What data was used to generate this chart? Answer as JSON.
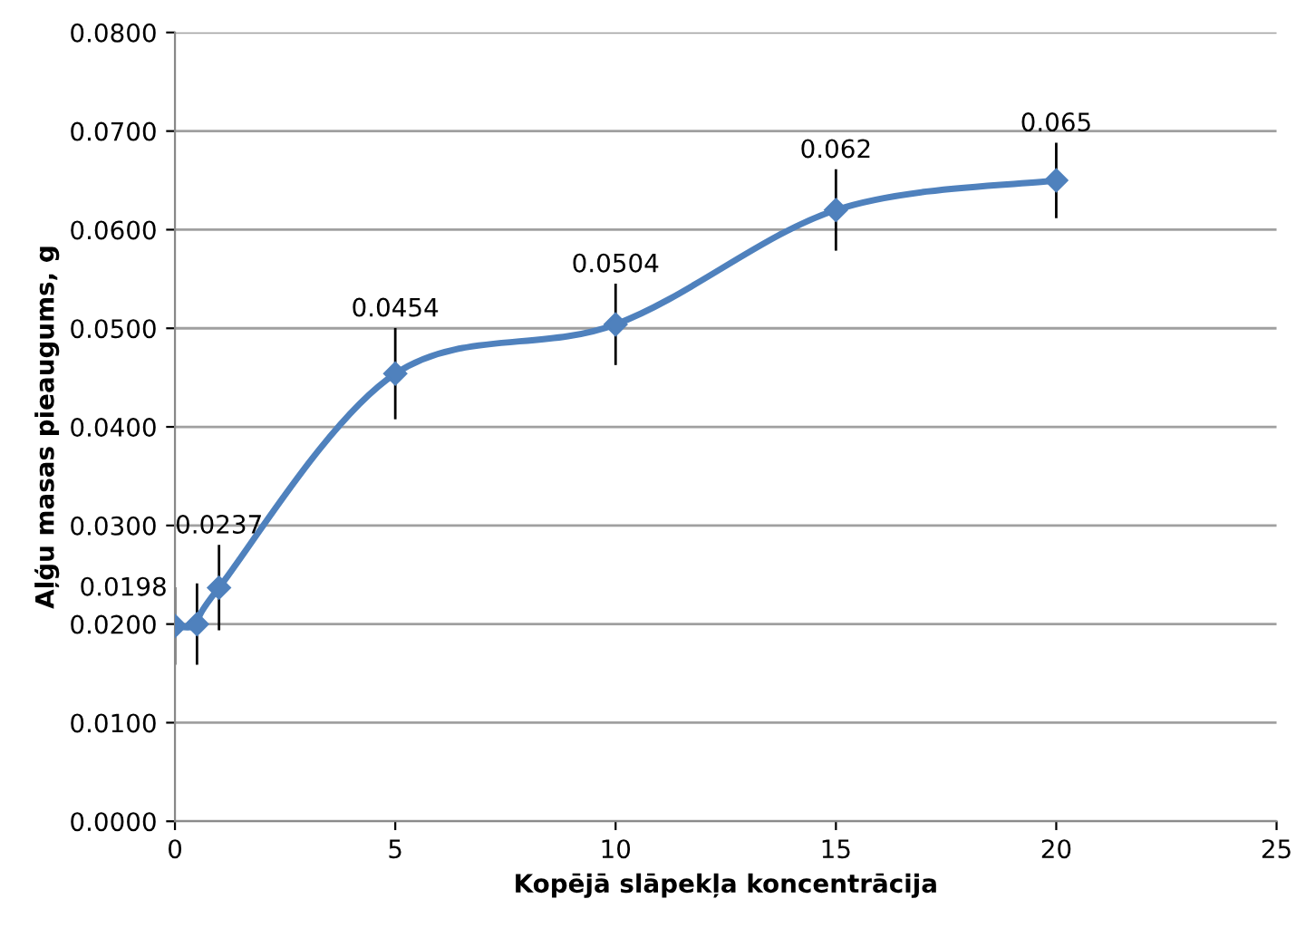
{
  "chart_data": {
    "type": "line",
    "xlabel": "Kopējā slāpekļa koncentrācija",
    "ylabel": "Aļģu masas pieaugums, g",
    "x": [
      0,
      0.5,
      1,
      5,
      10,
      15,
      20
    ],
    "series": [
      {
        "color": "#4f81bd",
        "values": [
          0.0198,
          0.02,
          0.0237,
          0.0454,
          0.0504,
          0.062,
          0.065
        ],
        "errors": [
          0.0038,
          0.004,
          0.0042,
          0.0045,
          0.004,
          0.004,
          0.0037
        ],
        "value_labels": [
          "0.0198",
          null,
          "0.0237",
          "0.0454",
          "0.0504",
          "0.062",
          "0.065"
        ]
      }
    ],
    "xlim": [
      0,
      25
    ],
    "xticks": [
      0,
      5,
      10,
      15,
      20,
      25
    ],
    "ylim": [
      0,
      0.08
    ],
    "yticks": [
      {
        "value": 0,
        "label": "0.0000"
      },
      {
        "value": 0.01,
        "label": "0.0100"
      },
      {
        "value": 0.02,
        "label": "0.0200"
      },
      {
        "value": 0.03,
        "label": "0.0300"
      },
      {
        "value": 0.04,
        "label": "0.0400"
      },
      {
        "value": 0.05,
        "label": "0.0500"
      },
      {
        "value": 0.06,
        "label": "0.0600"
      },
      {
        "value": 0.07,
        "label": "0.0700"
      },
      {
        "value": 0.08,
        "label": "0.0800"
      }
    ],
    "grid": "y",
    "marker": "diamond",
    "line_style": "solid",
    "legend": false
  }
}
